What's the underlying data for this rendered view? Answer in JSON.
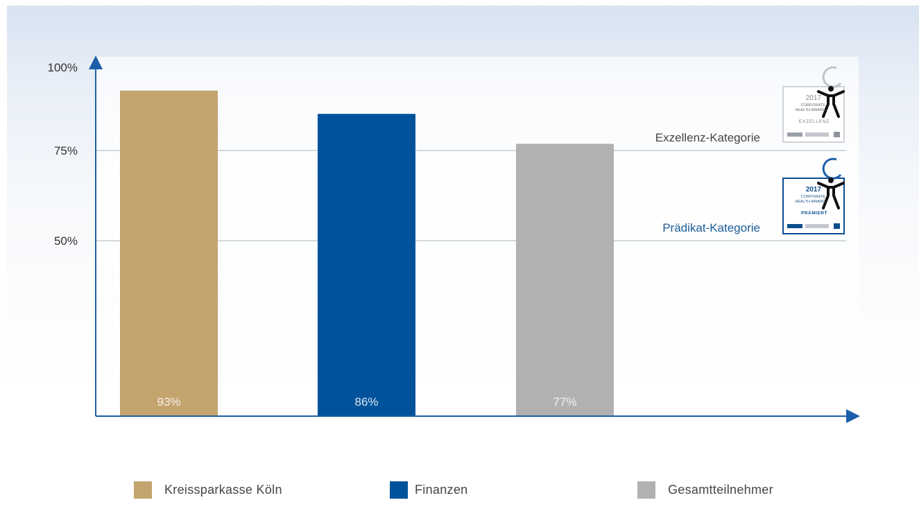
{
  "chart_data": {
    "type": "bar",
    "categories": [
      "Kreissparkasse Köln",
      "Finanzen",
      "Gesamtteilnehmer"
    ],
    "values": [
      93,
      86,
      77
    ],
    "value_labels": [
      "93%",
      "86%",
      "77%"
    ],
    "colors": [
      "#c3a46f",
      "#00539b",
      "#b1b1b1"
    ],
    "y_ticks": [
      {
        "value": 50,
        "label": "50%"
      },
      {
        "value": 75,
        "label": "75%"
      },
      {
        "value": 100,
        "label": "100%"
      }
    ],
    "ylim": [
      0,
      100
    ],
    "reference_lines": [
      {
        "value": 75,
        "label": "Exzellenz-Kategorie",
        "color": "#444444"
      },
      {
        "value": 50,
        "label": "Prädikat-Kategorie",
        "color": "#1b5c97"
      }
    ],
    "legend_position": "bottom",
    "grid": false,
    "axis_color": "#1b5fa8"
  },
  "badges": [
    {
      "year": "2017",
      "line1": "CORPORATE",
      "line2": "HEALTH AWARD",
      "status": "EXZELLENZ",
      "icon": "person-arms-raised-icon"
    },
    {
      "year": "2017",
      "line1": "CORPORATE",
      "line2": "HEALTH AWARD",
      "status": "PRÄMIERT",
      "icon": "person-arms-raised-icon"
    }
  ]
}
